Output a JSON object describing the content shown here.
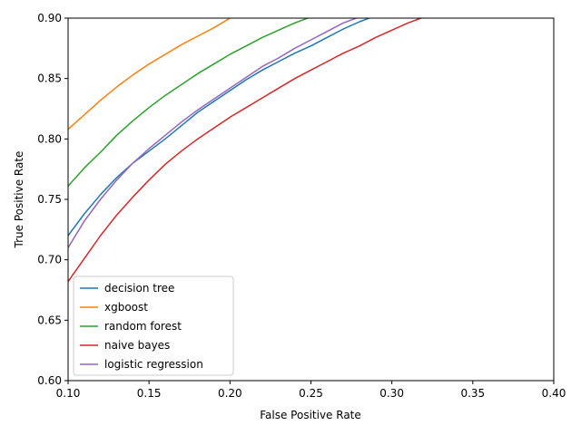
{
  "chart_data": {
    "type": "line",
    "title": "",
    "xlabel": "False Positive Rate",
    "ylabel": "True Positive Rate",
    "xlim": [
      0.1,
      0.4
    ],
    "ylim": [
      0.6,
      0.9
    ],
    "xticks": [
      "0.10",
      "0.15",
      "0.20",
      "0.25",
      "0.30",
      "0.35",
      "0.40"
    ],
    "yticks": [
      "0.60",
      "0.65",
      "0.70",
      "0.75",
      "0.80",
      "0.85",
      "0.90"
    ],
    "grid": false,
    "legend_position": "lower left",
    "series": [
      {
        "name": "decision tree",
        "color": "#1f77b4",
        "points": [
          [
            0.1,
            0.72
          ],
          [
            0.11,
            0.738
          ],
          [
            0.12,
            0.754
          ],
          [
            0.13,
            0.768
          ],
          [
            0.14,
            0.78
          ],
          [
            0.15,
            0.79
          ],
          [
            0.16,
            0.8
          ],
          [
            0.17,
            0.811
          ],
          [
            0.18,
            0.822
          ],
          [
            0.19,
            0.831
          ],
          [
            0.2,
            0.84
          ],
          [
            0.21,
            0.849
          ],
          [
            0.22,
            0.857
          ],
          [
            0.23,
            0.864
          ],
          [
            0.24,
            0.871
          ],
          [
            0.25,
            0.877
          ],
          [
            0.26,
            0.884
          ],
          [
            0.27,
            0.891
          ],
          [
            0.28,
            0.897
          ],
          [
            0.29,
            0.902
          ]
        ]
      },
      {
        "name": "xgboost",
        "color": "#ff7f0e",
        "points": [
          [
            0.1,
            0.808
          ],
          [
            0.11,
            0.82
          ],
          [
            0.12,
            0.832
          ],
          [
            0.13,
            0.843
          ],
          [
            0.14,
            0.853
          ],
          [
            0.15,
            0.862
          ],
          [
            0.16,
            0.87
          ],
          [
            0.17,
            0.878
          ],
          [
            0.18,
            0.885
          ],
          [
            0.19,
            0.892
          ],
          [
            0.2,
            0.9
          ],
          [
            0.205,
            0.904
          ]
        ]
      },
      {
        "name": "random forest",
        "color": "#2ca02c",
        "points": [
          [
            0.1,
            0.761
          ],
          [
            0.11,
            0.776
          ],
          [
            0.12,
            0.789
          ],
          [
            0.13,
            0.803
          ],
          [
            0.14,
            0.815
          ],
          [
            0.15,
            0.826
          ],
          [
            0.16,
            0.836
          ],
          [
            0.17,
            0.845
          ],
          [
            0.18,
            0.854
          ],
          [
            0.19,
            0.862
          ],
          [
            0.2,
            0.87
          ],
          [
            0.21,
            0.877
          ],
          [
            0.22,
            0.884
          ],
          [
            0.23,
            0.89
          ],
          [
            0.24,
            0.896
          ],
          [
            0.25,
            0.901
          ]
        ]
      },
      {
        "name": "naive bayes",
        "color": "#d62728",
        "points": [
          [
            0.1,
            0.682
          ],
          [
            0.11,
            0.701
          ],
          [
            0.12,
            0.72
          ],
          [
            0.13,
            0.737
          ],
          [
            0.14,
            0.752
          ],
          [
            0.15,
            0.766
          ],
          [
            0.16,
            0.779
          ],
          [
            0.17,
            0.79
          ],
          [
            0.18,
            0.8
          ],
          [
            0.19,
            0.809
          ],
          [
            0.2,
            0.818
          ],
          [
            0.21,
            0.826
          ],
          [
            0.22,
            0.834
          ],
          [
            0.23,
            0.842
          ],
          [
            0.24,
            0.85
          ],
          [
            0.25,
            0.857
          ],
          [
            0.26,
            0.864
          ],
          [
            0.27,
            0.871
          ],
          [
            0.28,
            0.877
          ],
          [
            0.29,
            0.884
          ],
          [
            0.3,
            0.89
          ],
          [
            0.31,
            0.896
          ],
          [
            0.32,
            0.901
          ]
        ]
      },
      {
        "name": "logistic regression",
        "color": "#9467bd",
        "points": [
          [
            0.1,
            0.71
          ],
          [
            0.11,
            0.732
          ],
          [
            0.12,
            0.75
          ],
          [
            0.13,
            0.766
          ],
          [
            0.14,
            0.78
          ],
          [
            0.15,
            0.792
          ],
          [
            0.16,
            0.803
          ],
          [
            0.17,
            0.814
          ],
          [
            0.18,
            0.824
          ],
          [
            0.19,
            0.833
          ],
          [
            0.2,
            0.842
          ],
          [
            0.21,
            0.851
          ],
          [
            0.22,
            0.86
          ],
          [
            0.23,
            0.867
          ],
          [
            0.24,
            0.875
          ],
          [
            0.25,
            0.882
          ],
          [
            0.26,
            0.889
          ],
          [
            0.27,
            0.896
          ],
          [
            0.28,
            0.901
          ]
        ]
      }
    ]
  }
}
